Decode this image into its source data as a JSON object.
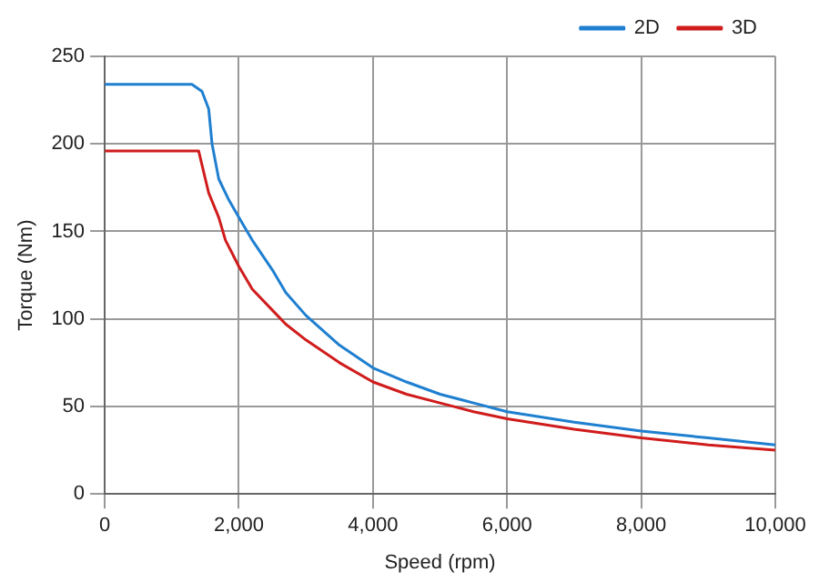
{
  "chart_data": {
    "type": "line",
    "xlabel": "Speed (rpm)",
    "ylabel": "Torque (Nm)",
    "xlim": [
      0,
      10000
    ],
    "xticks": [
      {
        "value": 0,
        "label": "0"
      },
      {
        "value": 2000,
        "label": "2,000"
      },
      {
        "value": 4000,
        "label": "4,000"
      },
      {
        "value": 6000,
        "label": "6,000"
      },
      {
        "value": 8000,
        "label": "8,000"
      },
      {
        "value": 10000,
        "label": "10,000"
      }
    ],
    "ylim": [
      0,
      250
    ],
    "yticks": [
      0,
      50,
      100,
      150,
      200,
      250
    ],
    "grid": true,
    "legend": "top right",
    "marker": "none",
    "line_style": "solid",
    "series": [
      {
        "name": "2D",
        "color": "#1f7fd0",
        "x": [
          0,
          1300,
          1450,
          1550,
          1600,
          1700,
          1850,
          2000,
          2200,
          2500,
          2700,
          3000,
          3500,
          4000,
          4500,
          5000,
          5500,
          6000,
          7000,
          8000,
          9000,
          10000
        ],
        "values": [
          234,
          234,
          230,
          220,
          200,
          180,
          168,
          158,
          145,
          128,
          115,
          102,
          85,
          72,
          64,
          57,
          52,
          47,
          41,
          36,
          32,
          28
        ]
      },
      {
        "name": "3D",
        "color": "#d01c1c",
        "x": [
          0,
          1400,
          1550,
          1700,
          1800,
          2000,
          2200,
          2500,
          2700,
          3000,
          3500,
          4000,
          4500,
          5000,
          5500,
          6000,
          7000,
          8000,
          9000,
          10000
        ],
        "values": [
          196,
          196,
          172,
          158,
          145,
          130,
          117,
          105,
          97,
          88,
          75,
          64,
          57,
          52,
          47,
          43,
          37,
          32,
          28,
          25
        ]
      }
    ]
  }
}
